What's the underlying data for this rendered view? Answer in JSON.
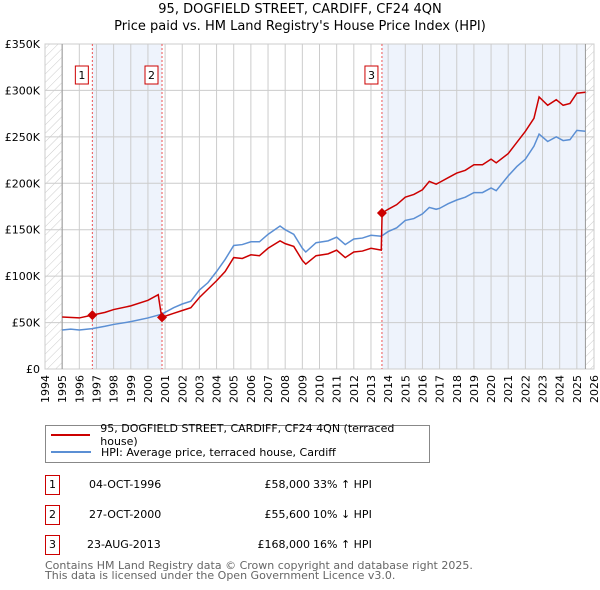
{
  "title": "95, DOGFIELD STREET, CARDIFF, CF24 4QN",
  "subtitle": "Price paid vs. HM Land Registry's House Price Index (HPI)",
  "chart_data": {
    "type": "line",
    "title": "95, DOGFIELD STREET, CARDIFF, CF24 4QN",
    "xlim": [
      1994,
      2026
    ],
    "ylim": [
      0,
      350000
    ],
    "x_ticks": [
      "1994",
      "1995",
      "1996",
      "1997",
      "1998",
      "1999",
      "2000",
      "2001",
      "2002",
      "2003",
      "2004",
      "2005",
      "2006",
      "2007",
      "2008",
      "2009",
      "2010",
      "2011",
      "2012",
      "2013",
      "2014",
      "2015",
      "2016",
      "2017",
      "2018",
      "2019",
      "2020",
      "2021",
      "2022",
      "2023",
      "2024",
      "2025",
      "2026"
    ],
    "y_ticks": [
      {
        "v": 0,
        "label": "£0"
      },
      {
        "v": 50000,
        "label": "£50K"
      },
      {
        "v": 100000,
        "label": "£100K"
      },
      {
        "v": 150000,
        "label": "£150K"
      },
      {
        "v": 200000,
        "label": "£200K"
      },
      {
        "v": 250000,
        "label": "£250K"
      },
      {
        "v": 300000,
        "label": "£300K"
      },
      {
        "v": 350000,
        "label": "£350K"
      }
    ],
    "colors": {
      "property": "#cc0000",
      "hpi": "#5b8fd4",
      "shade": "#eef3fc"
    },
    "series": [
      {
        "name": "95, DOGFIELD STREET, CARDIFF, CF24 4QN (terraced house)",
        "color": "#cc0000",
        "points": [
          [
            1995,
            56
          ],
          [
            1996,
            55
          ],
          [
            1996.75,
            58
          ],
          [
            1997.5,
            61
          ],
          [
            1998,
            64
          ],
          [
            1999,
            68
          ],
          [
            2000,
            74
          ],
          [
            2000.6,
            80
          ],
          [
            2000.8,
            55.6
          ],
          [
            2001.5,
            60
          ],
          [
            2002,
            63
          ],
          [
            2002.5,
            66
          ],
          [
            2003,
            77
          ],
          [
            2003.5,
            86
          ],
          [
            2004,
            95
          ],
          [
            2004.5,
            105
          ],
          [
            2005,
            120
          ],
          [
            2005.5,
            119
          ],
          [
            2006,
            123
          ],
          [
            2006.5,
            122
          ],
          [
            2007,
            130
          ],
          [
            2007.7,
            138
          ],
          [
            2008,
            135
          ],
          [
            2008.5,
            132
          ],
          [
            2009,
            117
          ],
          [
            2009.2,
            113
          ],
          [
            2009.8,
            122
          ],
          [
            2010.5,
            124
          ],
          [
            2011,
            128
          ],
          [
            2011.5,
            120
          ],
          [
            2012,
            126
          ],
          [
            2012.5,
            127
          ],
          [
            2013,
            130
          ],
          [
            2013.6,
            128
          ],
          [
            2013.65,
            168
          ],
          [
            2014,
            172
          ],
          [
            2014.5,
            177
          ],
          [
            2015,
            185
          ],
          [
            2015.5,
            188
          ],
          [
            2016,
            193
          ],
          [
            2016.4,
            202
          ],
          [
            2016.8,
            199
          ],
          [
            2017,
            201
          ],
          [
            2017.5,
            206
          ],
          [
            2018,
            211
          ],
          [
            2018.5,
            214
          ],
          [
            2019,
            220
          ],
          [
            2019.5,
            220
          ],
          [
            2020,
            226
          ],
          [
            2020.3,
            222
          ],
          [
            2021,
            232
          ],
          [
            2021.5,
            244
          ],
          [
            2022,
            256
          ],
          [
            2022.5,
            270
          ],
          [
            2022.8,
            293
          ],
          [
            2023.3,
            284
          ],
          [
            2023.8,
            290
          ],
          [
            2024.2,
            284
          ],
          [
            2024.6,
            286
          ],
          [
            2025,
            297
          ],
          [
            2025.5,
            298
          ]
        ]
      },
      {
        "name": "HPI: Average price, terraced house, Cardiff",
        "color": "#5b8fd4",
        "points": [
          [
            1995,
            42
          ],
          [
            1995.5,
            43
          ],
          [
            1996,
            42
          ],
          [
            1996.75,
            43.5
          ],
          [
            1997.5,
            46
          ],
          [
            1998,
            48
          ],
          [
            1999,
            51
          ],
          [
            2000,
            55
          ],
          [
            2000.8,
            59
          ],
          [
            2001.5,
            66
          ],
          [
            2002,
            70
          ],
          [
            2002.5,
            73
          ],
          [
            2003,
            85
          ],
          [
            2003.5,
            93
          ],
          [
            2004,
            105
          ],
          [
            2004.5,
            118
          ],
          [
            2005,
            133
          ],
          [
            2005.5,
            134
          ],
          [
            2006,
            137
          ],
          [
            2006.5,
            137
          ],
          [
            2007,
            145
          ],
          [
            2007.7,
            154
          ],
          [
            2008,
            150
          ],
          [
            2008.5,
            145
          ],
          [
            2009,
            130
          ],
          [
            2009.2,
            126
          ],
          [
            2009.8,
            136
          ],
          [
            2010.5,
            138
          ],
          [
            2011,
            142
          ],
          [
            2011.5,
            134
          ],
          [
            2012,
            140
          ],
          [
            2012.5,
            141
          ],
          [
            2013,
            144
          ],
          [
            2013.6,
            143
          ],
          [
            2014,
            148
          ],
          [
            2014.5,
            152
          ],
          [
            2015,
            160
          ],
          [
            2015.5,
            162
          ],
          [
            2016,
            167
          ],
          [
            2016.4,
            174
          ],
          [
            2016.8,
            172
          ],
          [
            2017,
            173
          ],
          [
            2017.5,
            178
          ],
          [
            2018,
            182
          ],
          [
            2018.5,
            185
          ],
          [
            2019,
            190
          ],
          [
            2019.5,
            190
          ],
          [
            2020,
            195
          ],
          [
            2020.3,
            192
          ],
          [
            2021,
            208
          ],
          [
            2021.5,
            218
          ],
          [
            2022,
            226
          ],
          [
            2022.5,
            240
          ],
          [
            2022.8,
            253
          ],
          [
            2023.3,
            245
          ],
          [
            2023.8,
            250
          ],
          [
            2024.2,
            246
          ],
          [
            2024.6,
            247
          ],
          [
            2025,
            257
          ],
          [
            2025.5,
            256
          ]
        ]
      }
    ],
    "sales": [
      {
        "n": "1",
        "x": 1996.76,
        "price": 58000,
        "date": "04-OCT-1996",
        "price_label": "£58,000",
        "hpi_label": "33% ↑ HPI"
      },
      {
        "n": "2",
        "x": 2000.82,
        "price": 55600,
        "date": "27-OCT-2000",
        "price_label": "£55,600",
        "hpi_label": "10% ↓ HPI"
      },
      {
        "n": "3",
        "x": 2013.64,
        "price": 168000,
        "date": "23-AUG-2013",
        "price_label": "£168,000",
        "hpi_label": "16% ↑ HPI"
      }
    ],
    "shaded_ranges": [
      [
        1996.76,
        2000.82
      ],
      [
        2013.64,
        2025.5
      ]
    ],
    "data_range": [
      1995,
      2025.5
    ]
  },
  "footer": [
    "Contains HM Land Registry data © Crown copyright and database right 2025.",
    "This data is licensed under the Open Government Licence v3.0."
  ]
}
